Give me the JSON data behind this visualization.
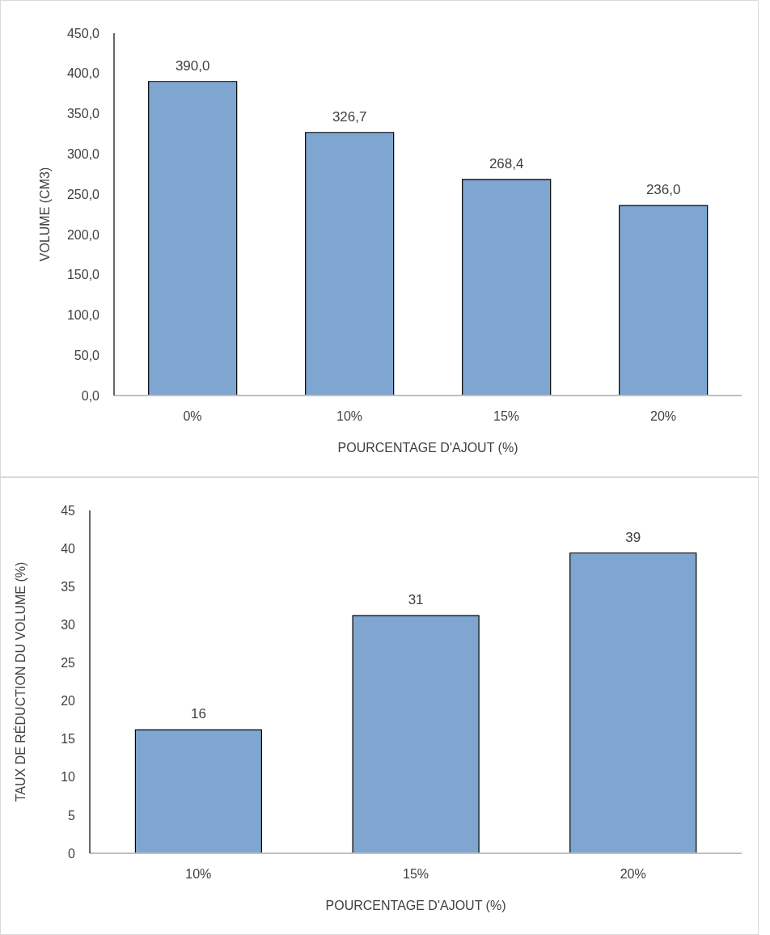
{
  "chart_data": [
    {
      "type": "bar",
      "categories": [
        "0%",
        "10%",
        "15%",
        "20%"
      ],
      "values": [
        390.0,
        326.7,
        268.4,
        236.0
      ],
      "value_labels": [
        "390,0",
        "326,7",
        "268,4",
        "236,0"
      ],
      "color": "#7fa6d0",
      "ylim": [
        0,
        450
      ],
      "yticks": [
        {
          "value": 0,
          "label": "0,0"
        },
        {
          "value": 50,
          "label": "50,0"
        },
        {
          "value": 100,
          "label": "100,0"
        },
        {
          "value": 150,
          "label": "150,0"
        },
        {
          "value": 200,
          "label": "200,0"
        },
        {
          "value": 250,
          "label": "250,0"
        },
        {
          "value": 300,
          "label": "300,0"
        },
        {
          "value": 350,
          "label": "350,0"
        },
        {
          "value": 400,
          "label": "400,0"
        },
        {
          "value": 450,
          "label": "450,0"
        }
      ],
      "xlabel": "POURCENTAGE D'AJOUT (%)",
      "ylabel": "VOLUME (CM3)"
    },
    {
      "type": "bar",
      "categories": [
        "10%",
        "15%",
        "20%"
      ],
      "values": [
        16.2,
        31.2,
        39.4
      ],
      "value_labels": [
        "16",
        "31",
        "39"
      ],
      "color": "#7fa6d0",
      "ylim": [
        0,
        45
      ],
      "yticks": [
        0,
        5,
        10,
        15,
        20,
        25,
        30,
        35,
        40,
        45
      ],
      "xlabel": "POURCENTAGE D'AJOUT (%)",
      "ylabel": "TAUX DE RÉDUCTION DU VOLUME (%)"
    }
  ]
}
